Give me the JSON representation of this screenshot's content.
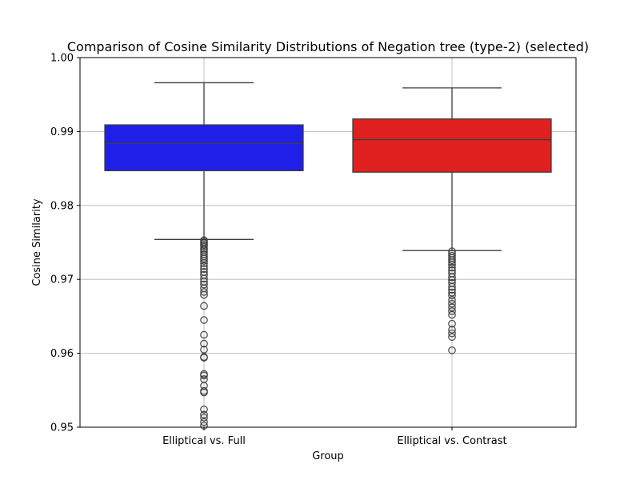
{
  "chart_data": {
    "type": "boxplot",
    "title": "Comparison of Cosine Similarity Distributions of Negation tree (type-2) (selected)",
    "xlabel": "Group",
    "ylabel": "Cosine Similarity",
    "ylim": [
      0.95,
      1.0
    ],
    "yticks": [
      0.95,
      0.96,
      0.97,
      0.98,
      0.99,
      1.0
    ],
    "ytick_labels": [
      "0.95",
      "0.96",
      "0.97",
      "0.98",
      "0.99",
      "1.00"
    ],
    "grid": true,
    "categories": [
      "Elliptical vs. Full",
      "Elliptical vs. Contrast"
    ],
    "series": [
      {
        "category": "Elliptical vs. Full",
        "color": "#1f1fe8",
        "whisker_low": 0.9754,
        "q1": 0.9847,
        "median": 0.9884,
        "q3": 0.9909,
        "whisker_high": 0.9966,
        "outliers": [
          0.9753,
          0.9751,
          0.9749,
          0.9747,
          0.9745,
          0.9742,
          0.974,
          0.9737,
          0.9734,
          0.9731,
          0.9728,
          0.9725,
          0.9722,
          0.9718,
          0.9714,
          0.971,
          0.9706,
          0.9701,
          0.9697,
          0.9693,
          0.9688,
          0.9683,
          0.9679,
          0.9664,
          0.9645,
          0.9625,
          0.9613,
          0.9605,
          0.9595,
          0.9594,
          0.9572,
          0.957,
          0.9565,
          0.9556,
          0.9549,
          0.9547,
          0.9524,
          0.9517,
          0.9513,
          0.9507,
          0.9502
        ]
      },
      {
        "category": "Elliptical vs. Contrast",
        "color": "#e01f1f",
        "whisker_low": 0.9739,
        "q1": 0.9845,
        "median": 0.9889,
        "q3": 0.9917,
        "whisker_high": 0.9959,
        "outliers": [
          0.9738,
          0.9735,
          0.9732,
          0.9729,
          0.9726,
          0.9723,
          0.972,
          0.9716,
          0.9712,
          0.9708,
          0.9703,
          0.9699,
          0.9695,
          0.969,
          0.9686,
          0.9682,
          0.9678,
          0.9672,
          0.9667,
          0.9662,
          0.9657,
          0.9652,
          0.964,
          0.9632,
          0.9627,
          0.9622,
          0.9604
        ]
      }
    ]
  }
}
